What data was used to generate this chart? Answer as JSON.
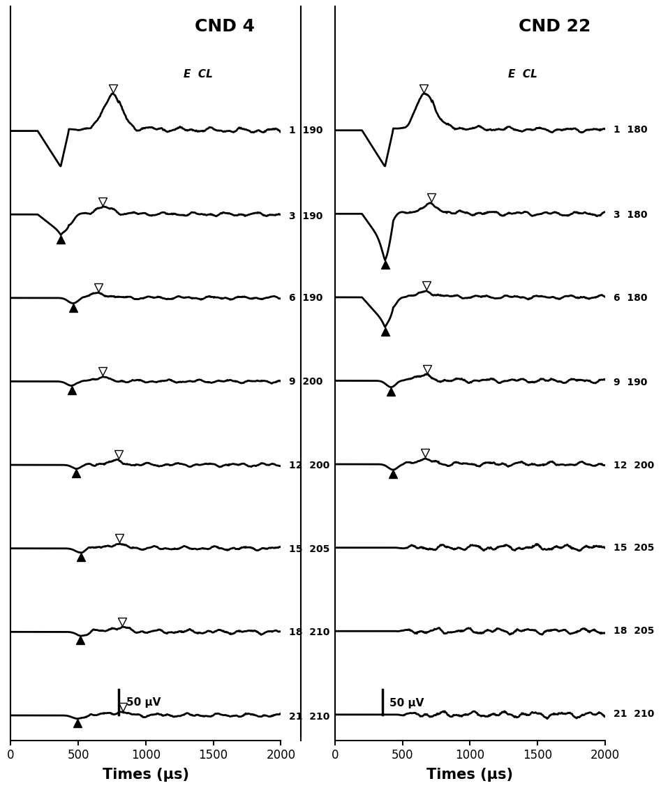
{
  "title_left": "CND 4",
  "title_right": "CND 22",
  "xlabel": "Times (μs)",
  "scale_bar_label": "50 μV",
  "ecl_label": "E  CL",
  "left_traces": [
    {
      "E": "1",
      "CL": "190",
      "has_n1": false,
      "n1_t": null,
      "p2_t": 750,
      "art_amp": 1.0,
      "n1_amp": 0.0,
      "p2_amp": 1.0,
      "noise": 0.04
    },
    {
      "E": "3",
      "CL": "190",
      "has_n1": true,
      "n1_t": 430,
      "p2_t": 690,
      "art_amp": 0.5,
      "n1_amp": 0.32,
      "p2_amp": 0.18,
      "noise": 0.03
    },
    {
      "E": "6",
      "CL": "190",
      "has_n1": true,
      "n1_t": 460,
      "p2_t": 650,
      "art_amp": 0.0,
      "n1_amp": 0.15,
      "p2_amp": 0.12,
      "noise": 0.025
    },
    {
      "E": "9",
      "CL": "200",
      "has_n1": true,
      "n1_t": 450,
      "p2_t": 660,
      "art_amp": 0.0,
      "n1_amp": 0.12,
      "p2_amp": 0.1,
      "noise": 0.025
    },
    {
      "E": "12",
      "CL": "200",
      "has_n1": true,
      "n1_t": 490,
      "p2_t": 760,
      "art_amp": 0.0,
      "n1_amp": 0.1,
      "p2_amp": 0.1,
      "noise": 0.03
    },
    {
      "E": "15",
      "CL": "205",
      "has_n1": true,
      "n1_t": 510,
      "p2_t": 770,
      "art_amp": 0.0,
      "n1_amp": 0.1,
      "p2_amp": 0.11,
      "noise": 0.03
    },
    {
      "E": "18",
      "CL": "210",
      "has_n1": true,
      "n1_t": 520,
      "p2_t": 790,
      "art_amp": 0.0,
      "n1_amp": 0.1,
      "p2_amp": 0.12,
      "noise": 0.035
    },
    {
      "E": "21",
      "CL": "210",
      "has_n1": true,
      "n1_t": 490,
      "p2_t": 780,
      "art_amp": 0.0,
      "n1_amp": 0.09,
      "p2_amp": 0.09,
      "noise": 0.03
    }
  ],
  "right_traces": [
    {
      "E": "1",
      "CL": "180",
      "has_n1": false,
      "n1_t": null,
      "p2_t": 670,
      "art_amp": 0.85,
      "n1_amp": 0.0,
      "p2_amp": 0.85,
      "noise": 0.03
    },
    {
      "E": "3",
      "CL": "180",
      "has_n1": true,
      "n1_t": 390,
      "p2_t": 700,
      "art_amp": 0.75,
      "n1_amp": 0.4,
      "p2_amp": 0.18,
      "noise": 0.03
    },
    {
      "E": "6",
      "CL": "180",
      "has_n1": true,
      "n1_t": 420,
      "p2_t": 680,
      "art_amp": 0.6,
      "n1_amp": 0.28,
      "p2_amp": 0.1,
      "noise": 0.025
    },
    {
      "E": "9",
      "CL": "190",
      "has_n1": true,
      "n1_t": 415,
      "p2_t": 630,
      "art_amp": 0.0,
      "n1_amp": 0.15,
      "p2_amp": 0.12,
      "noise": 0.03
    },
    {
      "E": "12",
      "CL": "200",
      "has_n1": true,
      "n1_t": 430,
      "p2_t": 645,
      "art_amp": 0.0,
      "n1_amp": 0.13,
      "p2_amp": 0.11,
      "noise": 0.03
    },
    {
      "E": "15",
      "CL": "205",
      "has_n1": false,
      "n1_t": null,
      "p2_t": null,
      "art_amp": 0.0,
      "n1_amp": 0.0,
      "p2_amp": 0.0,
      "noise": 0.04
    },
    {
      "E": "18",
      "CL": "205",
      "has_n1": false,
      "n1_t": null,
      "p2_t": null,
      "art_amp": 0.0,
      "n1_amp": 0.0,
      "p2_amp": 0.0,
      "noise": 0.04
    },
    {
      "E": "21",
      "CL": "210",
      "has_n1": false,
      "n1_t": null,
      "p2_t": null,
      "art_amp": 0.0,
      "n1_amp": 0.0,
      "p2_amp": 0.0,
      "noise": 0.04
    }
  ]
}
